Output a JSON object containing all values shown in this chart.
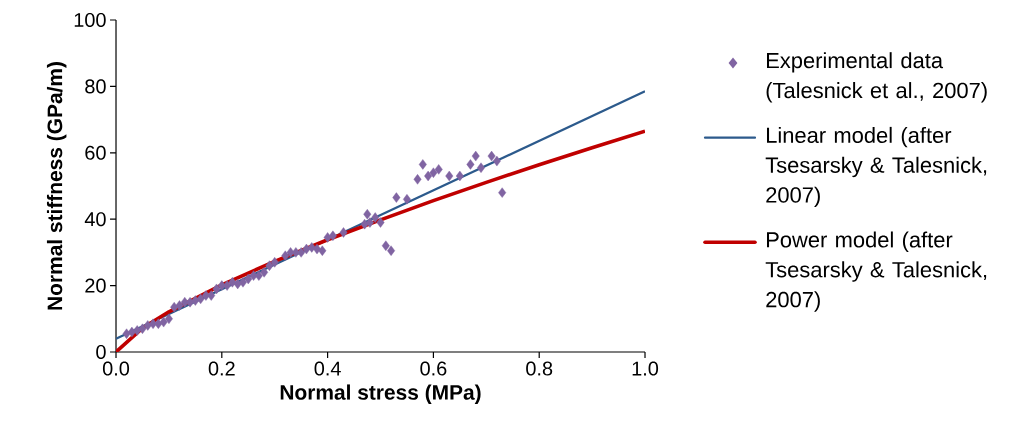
{
  "chart_data": {
    "type": "scatter",
    "xlabel": "Normal stress (MPa)",
    "ylabel": "Normal stiffness (GPa/m)",
    "xlim": [
      0,
      1
    ],
    "ylim": [
      0,
      100
    ],
    "xticks": [
      {
        "value": 0,
        "label": "0.0"
      },
      0.2,
      0.4,
      0.6,
      0.8,
      {
        "value": 1,
        "label": "1.0"
      }
    ],
    "yticks": [
      0,
      20,
      40,
      60,
      80,
      100
    ],
    "grid": false,
    "legend": "right",
    "series": [
      {
        "name": "Experimental data (Talesnick et al., 2007)",
        "marker": "diamond",
        "color": "#8064a2",
        "x": [
          0.02,
          0.03,
          0.04,
          0.05,
          0.06,
          0.07,
          0.08,
          0.09,
          0.1,
          0.11,
          0.12,
          0.13,
          0.14,
          0.15,
          0.16,
          0.17,
          0.18,
          0.19,
          0.2,
          0.21,
          0.22,
          0.23,
          0.24,
          0.25,
          0.26,
          0.27,
          0.28,
          0.29,
          0.3,
          0.32,
          0.33,
          0.34,
          0.35,
          0.36,
          0.37,
          0.38,
          0.39,
          0.4,
          0.41,
          0.43,
          0.47,
          0.475,
          0.48,
          0.49,
          0.5,
          0.51,
          0.52,
          0.53,
          0.55,
          0.57,
          0.58,
          0.59,
          0.6,
          0.61,
          0.63,
          0.65,
          0.67,
          0.68,
          0.69,
          0.71,
          0.72,
          0.73
        ],
        "values": [
          5.5,
          6,
          6.5,
          7,
          8,
          8.5,
          8.5,
          9,
          10,
          13.5,
          14,
          15,
          15,
          15.5,
          16,
          17,
          17,
          19,
          20,
          20,
          21,
          20.5,
          21,
          22,
          23,
          23,
          24,
          26,
          27,
          29,
          30,
          30,
          30,
          31,
          31.5,
          31,
          30.5,
          34.5,
          35,
          36,
          38.5,
          41.5,
          39,
          40.5,
          39,
          32,
          30.5,
          46.5,
          46,
          52,
          56.5,
          53,
          54,
          55,
          53,
          53,
          56.5,
          59,
          55.5,
          59,
          57.5,
          48
        ]
      },
      {
        "name": "Linear model (after Tsesarsky & Talesnick, 2007)",
        "type": "line",
        "marker": "none",
        "line_style": "solid",
        "color": "#2c5a8c",
        "x": [
          0,
          1
        ],
        "values": [
          4,
          78.5
        ]
      },
      {
        "name": "Power model (after Tsesarsky & Talesnick, 2007)",
        "type": "line",
        "marker": "none",
        "line_style": "solid",
        "color": "#c00000",
        "x": [
          0,
          0.05,
          0.1,
          0.2,
          0.3,
          0.4,
          0.5,
          0.6,
          0.7,
          0.8,
          0.9,
          1.0
        ],
        "values": [
          0,
          7.2,
          12.1,
          20.2,
          27.3,
          33.8,
          39.8,
          45.6,
          51.1,
          56.4,
          61.5,
          66.5
        ]
      }
    ]
  }
}
